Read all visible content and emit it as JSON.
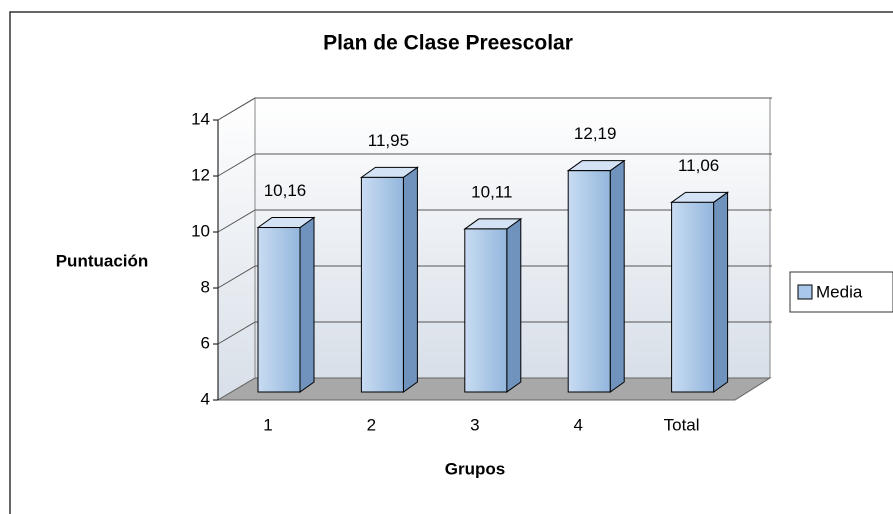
{
  "chart_data": {
    "type": "bar3d",
    "title": "Plan de Clase Preescolar",
    "x_label": "Grupos",
    "y_label": "Puntuación",
    "categories": [
      "1",
      "2",
      "3",
      "4",
      "Total"
    ],
    "series": [
      {
        "name": "Media",
        "color": "#a9c7e8",
        "values": [
          10.16,
          11.95,
          10.11,
          12.19,
          11.06
        ],
        "value_labels": [
          "10,16",
          "11,95",
          "10,11",
          "12,19",
          "11,06"
        ]
      }
    ],
    "ylim": [
      4,
      14
    ],
    "yticks": [
      4,
      6,
      8,
      10,
      12,
      14
    ],
    "grid": true,
    "legend": "right"
  }
}
